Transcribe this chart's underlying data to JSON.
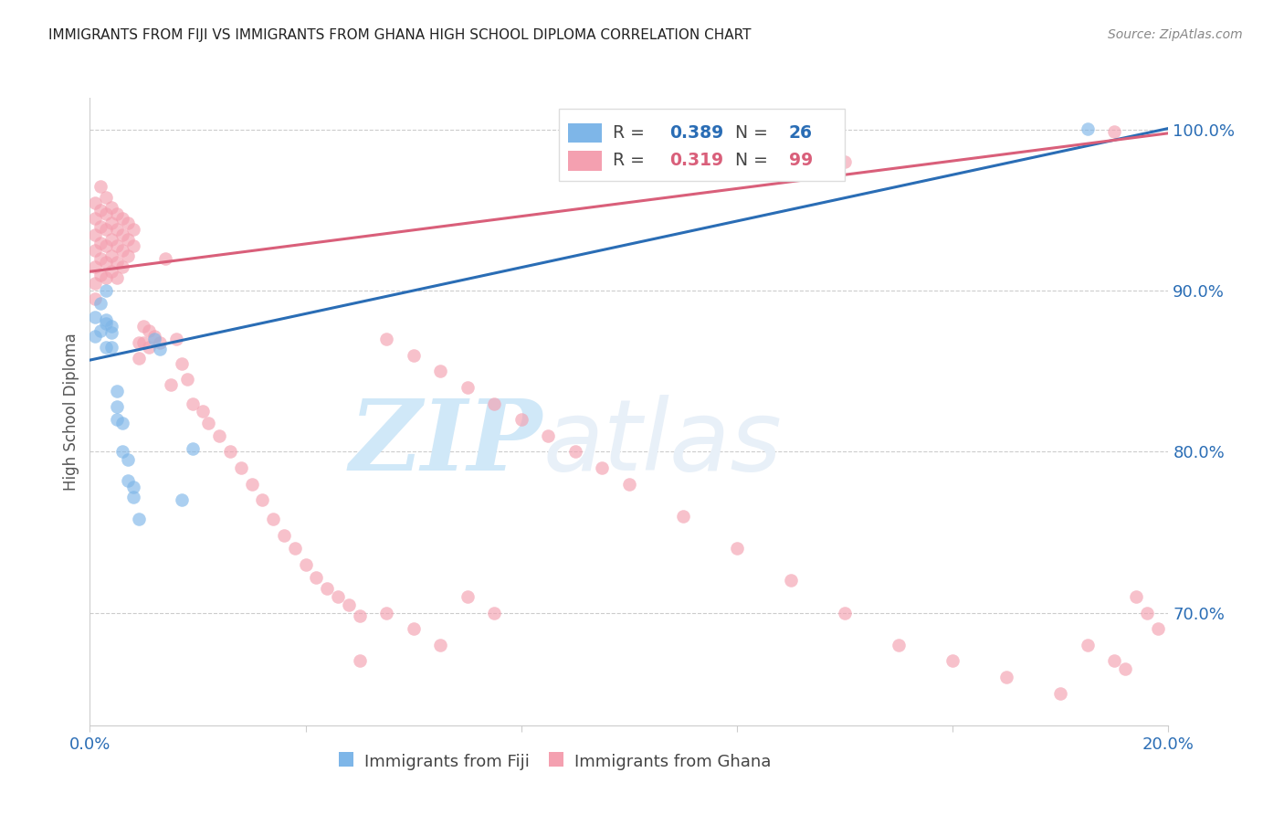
{
  "title": "IMMIGRANTS FROM FIJI VS IMMIGRANTS FROM GHANA HIGH SCHOOL DIPLOMA CORRELATION CHART",
  "source": "Source: ZipAtlas.com",
  "ylabel": "High School Diploma",
  "xlim": [
    0.0,
    0.2
  ],
  "ylim": [
    0.63,
    1.02
  ],
  "right_yticks": [
    0.7,
    0.8,
    0.9,
    1.0
  ],
  "right_yticklabels": [
    "70.0%",
    "80.0%",
    "90.0%",
    "100.0%"
  ],
  "fiji_color": "#7EB6E8",
  "ghana_color": "#F4A0B0",
  "fiji_line_color": "#2A6DB5",
  "ghana_line_color": "#D95F7A",
  "fiji_R": 0.389,
  "fiji_N": 26,
  "ghana_R": 0.319,
  "ghana_N": 99,
  "watermark_zip": "ZIP",
  "watermark_atlas": "atlas",
  "watermark_color": "#D0E8F8",
  "fiji_label": "Immigrants from Fiji",
  "ghana_label": "Immigrants from Ghana",
  "fiji_x": [
    0.001,
    0.001,
    0.002,
    0.002,
    0.003,
    0.003,
    0.003,
    0.004,
    0.004,
    0.005,
    0.005,
    0.006,
    0.007,
    0.007,
    0.008,
    0.009,
    0.012,
    0.013,
    0.017,
    0.019,
    0.185,
    0.003,
    0.004,
    0.005,
    0.006,
    0.008
  ],
  "fiji_y": [
    0.884,
    0.872,
    0.892,
    0.875,
    0.9,
    0.882,
    0.865,
    0.878,
    0.865,
    0.838,
    0.82,
    0.818,
    0.795,
    0.782,
    0.772,
    0.758,
    0.87,
    0.864,
    0.77,
    0.802,
    1.001,
    0.88,
    0.874,
    0.828,
    0.8,
    0.778
  ],
  "ghana_x": [
    0.001,
    0.001,
    0.001,
    0.001,
    0.001,
    0.001,
    0.001,
    0.002,
    0.002,
    0.002,
    0.002,
    0.002,
    0.002,
    0.003,
    0.003,
    0.003,
    0.003,
    0.003,
    0.003,
    0.004,
    0.004,
    0.004,
    0.004,
    0.004,
    0.005,
    0.005,
    0.005,
    0.005,
    0.005,
    0.006,
    0.006,
    0.006,
    0.006,
    0.007,
    0.007,
    0.007,
    0.008,
    0.008,
    0.009,
    0.009,
    0.01,
    0.01,
    0.011,
    0.011,
    0.012,
    0.013,
    0.014,
    0.015,
    0.016,
    0.017,
    0.018,
    0.019,
    0.021,
    0.022,
    0.024,
    0.026,
    0.028,
    0.03,
    0.032,
    0.034,
    0.036,
    0.038,
    0.04,
    0.042,
    0.044,
    0.046,
    0.048,
    0.05,
    0.055,
    0.06,
    0.065,
    0.07,
    0.075,
    0.08,
    0.085,
    0.09,
    0.095,
    0.1,
    0.11,
    0.12,
    0.13,
    0.14,
    0.15,
    0.16,
    0.17,
    0.18,
    0.185,
    0.19,
    0.192,
    0.194,
    0.196,
    0.198,
    0.05,
    0.055,
    0.06,
    0.065,
    0.07,
    0.075,
    0.14,
    0.19
  ],
  "ghana_y": [
    0.955,
    0.945,
    0.935,
    0.925,
    0.915,
    0.905,
    0.895,
    0.965,
    0.95,
    0.94,
    0.93,
    0.92,
    0.91,
    0.958,
    0.948,
    0.938,
    0.928,
    0.918,
    0.908,
    0.952,
    0.942,
    0.932,
    0.922,
    0.912,
    0.948,
    0.938,
    0.928,
    0.918,
    0.908,
    0.945,
    0.935,
    0.925,
    0.915,
    0.942,
    0.932,
    0.922,
    0.938,
    0.928,
    0.868,
    0.858,
    0.878,
    0.868,
    0.875,
    0.865,
    0.872,
    0.868,
    0.92,
    0.842,
    0.87,
    0.855,
    0.845,
    0.83,
    0.825,
    0.818,
    0.81,
    0.8,
    0.79,
    0.78,
    0.77,
    0.758,
    0.748,
    0.74,
    0.73,
    0.722,
    0.715,
    0.71,
    0.705,
    0.698,
    0.87,
    0.86,
    0.85,
    0.84,
    0.83,
    0.82,
    0.81,
    0.8,
    0.79,
    0.78,
    0.76,
    0.74,
    0.72,
    0.7,
    0.68,
    0.67,
    0.66,
    0.65,
    0.68,
    0.67,
    0.665,
    0.71,
    0.7,
    0.69,
    0.67,
    0.7,
    0.69,
    0.68,
    0.71,
    0.7,
    0.98,
    0.999
  ]
}
